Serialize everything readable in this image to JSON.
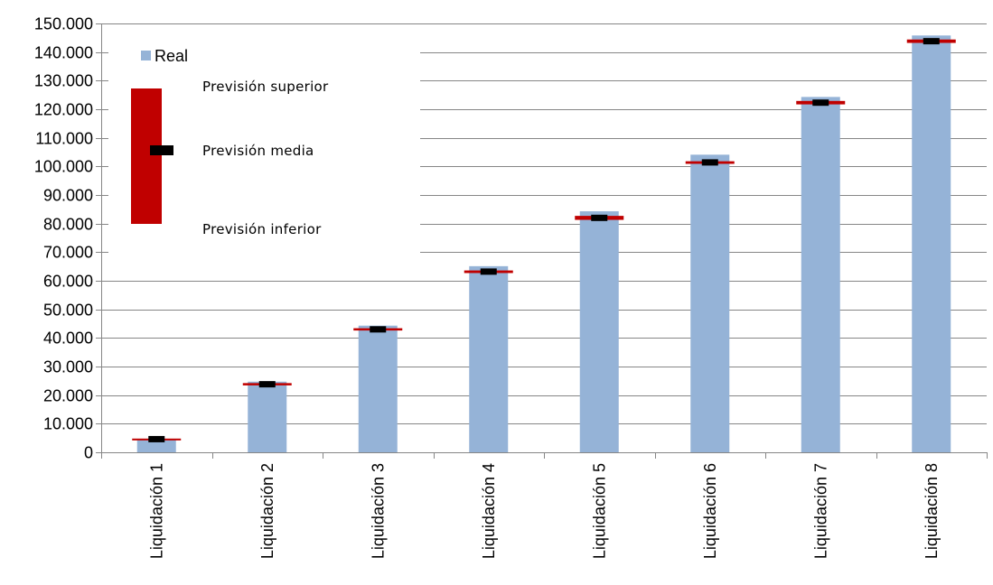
{
  "chart_data": {
    "type": "bar",
    "title": "",
    "xlabel": "",
    "ylabel": "",
    "categories": [
      "Liquidación 1",
      "Liquidación 2",
      "Liquidación 3",
      "Liquidación 4",
      "Liquidación 5",
      "Liquidación 6",
      "Liquidación 7",
      "Liquidación 8"
    ],
    "series": [
      {
        "name": "Real",
        "values": [
          4500,
          24700,
          44300,
          65100,
          84300,
          104100,
          124300,
          145800
        ],
        "color": "#95b3d7"
      }
    ],
    "forecast": {
      "media": [
        4600,
        23800,
        43000,
        63200,
        82000,
        101400,
        122300,
        143800
      ],
      "inferior": [
        4400,
        23400,
        42600,
        62700,
        81300,
        100900,
        121700,
        143200
      ],
      "superior": [
        4800,
        24200,
        43400,
        63600,
        82700,
        101800,
        122900,
        144400
      ],
      "range_color": "#c00000",
      "media_color": "#000000"
    },
    "ylim": [
      0,
      150000
    ],
    "yticks": [
      0,
      10000,
      20000,
      30000,
      40000,
      50000,
      60000,
      70000,
      80000,
      90000,
      100000,
      110000,
      120000,
      130000,
      140000,
      150000
    ],
    "ytick_labels": [
      "0",
      "10.000",
      "20.000",
      "30.000",
      "40.000",
      "50.000",
      "60.000",
      "70.000",
      "80.000",
      "90.000",
      "100.000",
      "110.000",
      "120.000",
      "130.000",
      "140.000",
      "150.000"
    ],
    "grid": true,
    "legend": {
      "placement": "top-left",
      "real_label": "Real",
      "superior_label": "Previsión superior",
      "media_label": "Previsión media",
      "inferior_label": "Previsión inferior"
    }
  }
}
